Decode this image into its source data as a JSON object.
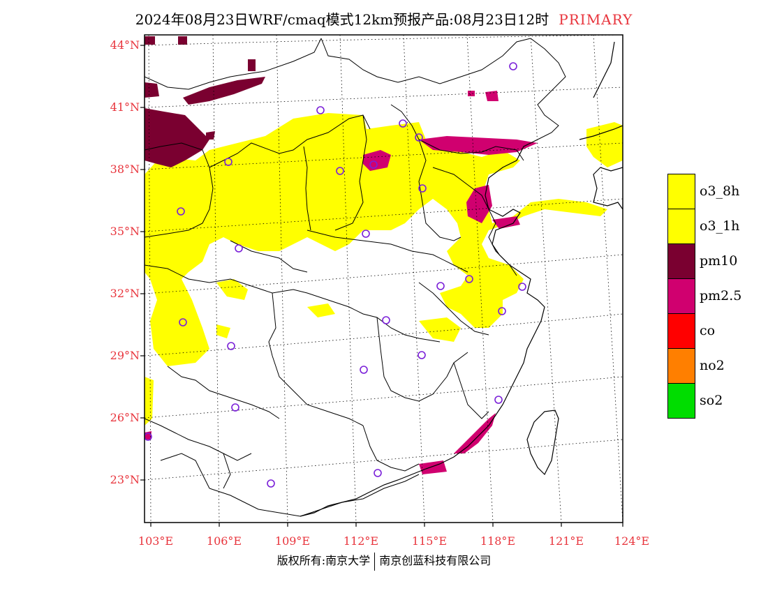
{
  "header": {
    "title": "2024年08月23日WRF/cmaq模式12km预报产品:08月23日12时",
    "tag": "PRIMARY"
  },
  "map": {
    "lat_labels": [
      "44°N",
      "41°N",
      "38°N",
      "35°N",
      "32°N",
      "29°N",
      "26°N",
      "23°N"
    ],
    "lon_labels": [
      "103°E",
      "106°E",
      "109°E",
      "112°E",
      "115°E",
      "118°E",
      "121°E",
      "124°E"
    ]
  },
  "legend": {
    "items": [
      {
        "label": "o3_8h",
        "color": "#ffff00"
      },
      {
        "label": "o3_1h",
        "color": "#ffff00"
      },
      {
        "label": "pm10",
        "color": "#7a0030"
      },
      {
        "label": "pm2.5",
        "color": "#d0006f"
      },
      {
        "label": "co",
        "color": "#ff0000"
      },
      {
        "label": "no2",
        "color": "#ff7f00"
      },
      {
        "label": "so2",
        "color": "#00dd00"
      }
    ]
  },
  "footer": {
    "left": "版权所有:南京大学",
    "right": "南京创蓝科技有限公司"
  }
}
